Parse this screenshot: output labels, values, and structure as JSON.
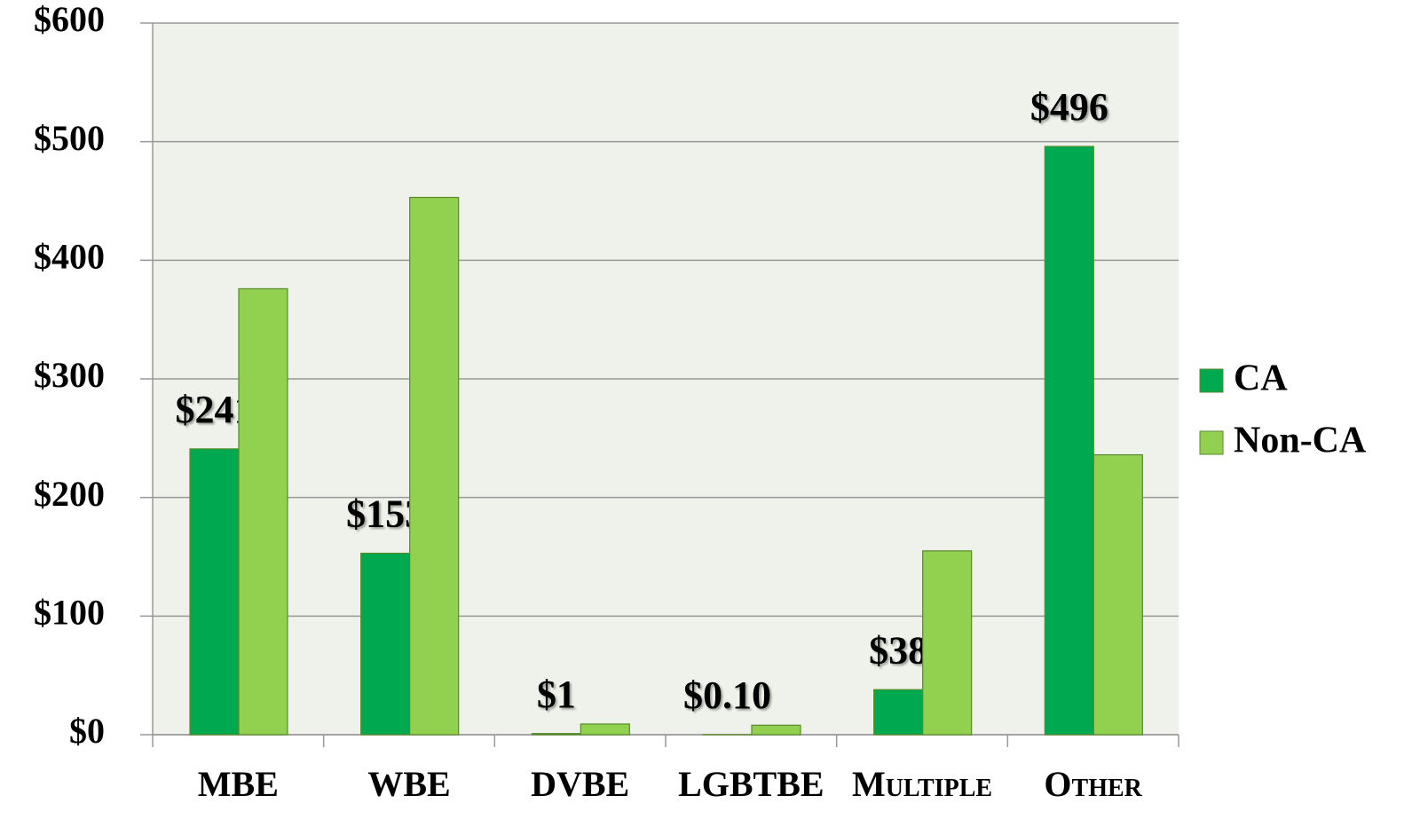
{
  "chart_data": {
    "type": "bar",
    "categories": [
      "MBE",
      "WBE",
      "DVBE",
      "LGBTBE",
      "Multiple",
      "Other"
    ],
    "series": [
      {
        "name": "CA",
        "color": "#00a94f",
        "values": [
          241,
          153,
          1,
          0.1,
          38,
          496
        ],
        "value_labels": [
          "$241",
          "$153",
          "$1",
          "$0.10",
          "$38",
          "$496"
        ]
      },
      {
        "name": "Non-CA",
        "color": "#92d050",
        "values": [
          376,
          453,
          9,
          8,
          155,
          236
        ]
      }
    ],
    "ylim": [
      0,
      600
    ],
    "yticks": [
      {
        "value": 0,
        "label": "$0"
      },
      {
        "value": 100,
        "label": "$100"
      },
      {
        "value": 200,
        "label": "$200"
      },
      {
        "value": 300,
        "label": "$300"
      },
      {
        "value": 400,
        "label": "$400"
      },
      {
        "value": 500,
        "label": "$500"
      },
      {
        "value": 600,
        "label": "$600"
      }
    ],
    "grid": true,
    "legend": "right"
  }
}
